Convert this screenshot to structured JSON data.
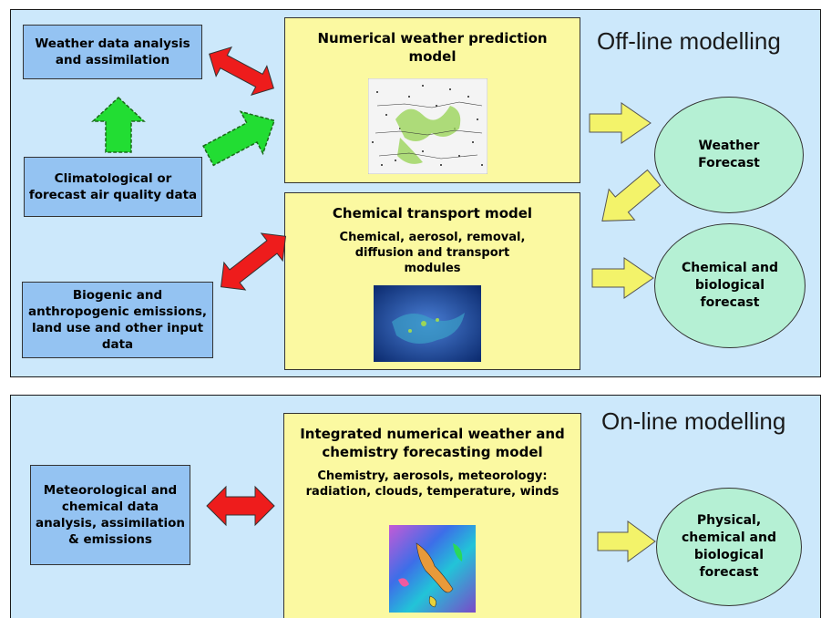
{
  "offline": {
    "title": "Off-line modelling",
    "nwp_title": "Numerical weather prediction model",
    "ctm_title": "Chemical transport model",
    "ctm_sub": "Chemical, aerosol, removal, diffusion and transport modules",
    "box_weather_data": "Weather data analysis and assimilation",
    "box_climatological": "Climatological or forecast air quality data",
    "box_emissions": "Biogenic and anthropogenic emissions, land use and other input data",
    "out_weather": "Weather Forecast",
    "out_chemical": "Chemical and biological forecast"
  },
  "online": {
    "title": "On-line modelling",
    "model_title": "Integrated numerical weather and chemistry forecasting model",
    "model_sub": "Chemistry, aerosols, meteorology: radiation, clouds, temperature, winds",
    "box_input": "Meteorological and chemical data analysis, assimilation & emissions",
    "out_forecast": "Physical, chemical and biological forecast"
  },
  "colors": {
    "panel_bg": "#cce8fb",
    "input_box": "#94c3f2",
    "model_box": "#fbf9a1",
    "output_ellipse": "#b5f0d4",
    "double_arrow": "#ee1c1c",
    "green_arrow": "#22dd33",
    "yellow_arrow": "#f3f36a"
  },
  "icons": [
    "weather-map-image",
    "satellite-image",
    "chemistry-map-image"
  ]
}
